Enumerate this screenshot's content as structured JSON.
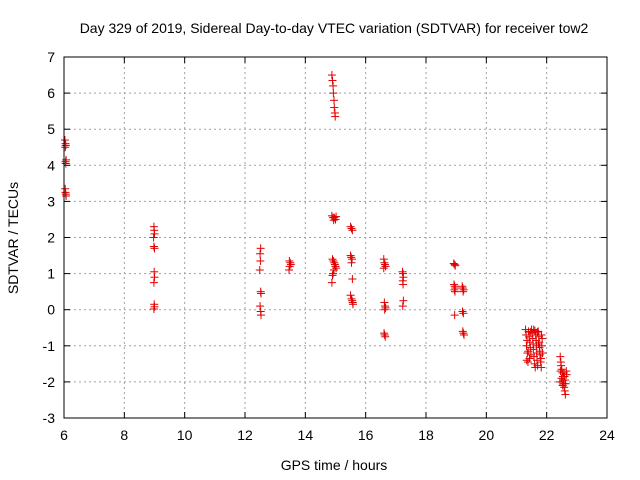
{
  "chart_data": {
    "type": "scatter",
    "title": "Day 329 of 2019, Sidereal Day-to-day VTEC variation (SDTVAR) for receiver tow2",
    "xlabel": "GPS time / hours",
    "ylabel": "SDTVAR / TECUs",
    "xlim": [
      6,
      24
    ],
    "ylim": [
      -3,
      7
    ],
    "xticks": [
      "6",
      "8",
      "10",
      "12",
      "14",
      "16",
      "18",
      "20",
      "22",
      "24"
    ],
    "yticks": [
      "-3",
      "-2",
      "-1",
      "0",
      "1",
      "2",
      "3",
      "4",
      "5",
      "6",
      "7"
    ],
    "grid": true,
    "marker": "+",
    "color": "#e00000",
    "series": [
      {
        "name": "SDTVAR",
        "points": [
          [
            6.03,
            4.7
          ],
          [
            6.05,
            4.6
          ],
          [
            6.06,
            4.55
          ],
          [
            6.04,
            4.5
          ],
          [
            6.07,
            4.15
          ],
          [
            6.05,
            4.1
          ],
          [
            6.06,
            4.05
          ],
          [
            6.04,
            3.35
          ],
          [
            6.05,
            3.25
          ],
          [
            6.06,
            3.2
          ],
          [
            6.07,
            3.15
          ],
          [
            8.98,
            2.3
          ],
          [
            8.99,
            2.2
          ],
          [
            9.0,
            2.1
          ],
          [
            8.97,
            2.0
          ],
          [
            8.98,
            1.75
          ],
          [
            9.0,
            1.7
          ],
          [
            8.99,
            1.05
          ],
          [
            9.0,
            0.9
          ],
          [
            8.98,
            0.75
          ],
          [
            8.99,
            0.15
          ],
          [
            9.0,
            0.08
          ],
          [
            8.98,
            0.02
          ],
          [
            12.52,
            1.7
          ],
          [
            12.5,
            1.55
          ],
          [
            12.51,
            1.35
          ],
          [
            12.49,
            1.1
          ],
          [
            12.52,
            0.5
          ],
          [
            12.53,
            0.45
          ],
          [
            12.5,
            0.1
          ],
          [
            12.52,
            -0.05
          ],
          [
            12.53,
            -0.15
          ],
          [
            13.47,
            1.35
          ],
          [
            13.5,
            1.3
          ],
          [
            13.52,
            1.25
          ],
          [
            13.48,
            1.2
          ],
          [
            13.46,
            1.1
          ],
          [
            14.88,
            6.5
          ],
          [
            14.9,
            6.35
          ],
          [
            14.92,
            6.2
          ],
          [
            14.93,
            6.0
          ],
          [
            14.95,
            5.8
          ],
          [
            14.96,
            5.6
          ],
          [
            14.98,
            5.45
          ],
          [
            14.99,
            5.35
          ],
          [
            14.88,
            2.6
          ],
          [
            14.92,
            2.55
          ],
          [
            14.96,
            2.55
          ],
          [
            15.0,
            2.5
          ],
          [
            15.02,
            2.58
          ],
          [
            14.94,
            2.48
          ],
          [
            14.9,
            1.4
          ],
          [
            14.93,
            1.35
          ],
          [
            14.96,
            1.3
          ],
          [
            14.98,
            1.25
          ],
          [
            15.0,
            1.2
          ],
          [
            15.02,
            1.15
          ],
          [
            14.95,
            1.1
          ],
          [
            14.92,
            1.0
          ],
          [
            14.9,
            0.95
          ],
          [
            14.88,
            0.75
          ],
          [
            15.5,
            2.3
          ],
          [
            15.53,
            2.25
          ],
          [
            15.56,
            2.2
          ],
          [
            15.5,
            1.5
          ],
          [
            15.52,
            1.45
          ],
          [
            15.55,
            1.4
          ],
          [
            15.53,
            1.3
          ],
          [
            15.56,
            0.85
          ],
          [
            15.5,
            0.4
          ],
          [
            15.53,
            0.3
          ],
          [
            15.55,
            0.25
          ],
          [
            15.57,
            0.2
          ],
          [
            15.58,
            0.15
          ],
          [
            16.6,
            1.4
          ],
          [
            16.62,
            1.3
          ],
          [
            16.64,
            1.25
          ],
          [
            16.66,
            1.2
          ],
          [
            16.6,
            1.15
          ],
          [
            16.62,
            0.2
          ],
          [
            16.64,
            0.1
          ],
          [
            16.66,
            0.05
          ],
          [
            16.63,
            0.0
          ],
          [
            16.61,
            -0.65
          ],
          [
            16.63,
            -0.7
          ],
          [
            16.65,
            -0.75
          ],
          [
            17.22,
            1.05
          ],
          [
            17.24,
            1.0
          ],
          [
            17.25,
            0.9
          ],
          [
            17.23,
            0.8
          ],
          [
            17.24,
            0.7
          ],
          [
            17.25,
            0.25
          ],
          [
            17.23,
            0.1
          ],
          [
            18.92,
            1.28
          ],
          [
            18.95,
            1.25
          ],
          [
            18.97,
            1.22
          ],
          [
            18.93,
            0.7
          ],
          [
            18.95,
            0.65
          ],
          [
            18.97,
            0.6
          ],
          [
            18.94,
            0.55
          ],
          [
            18.96,
            0.5
          ],
          [
            18.95,
            -0.15
          ],
          [
            19.2,
            0.65
          ],
          [
            19.22,
            0.6
          ],
          [
            19.25,
            0.55
          ],
          [
            19.23,
            0.5
          ],
          [
            19.21,
            -0.05
          ],
          [
            19.24,
            -0.1
          ],
          [
            19.22,
            -0.6
          ],
          [
            19.24,
            -0.65
          ],
          [
            19.26,
            -0.7
          ],
          [
            21.3,
            -0.55
          ],
          [
            21.32,
            -0.7
          ],
          [
            21.35,
            -0.85
          ],
          [
            21.33,
            -1.0
          ],
          [
            21.36,
            -1.2
          ],
          [
            21.34,
            -1.4
          ],
          [
            21.38,
            -1.45
          ],
          [
            21.4,
            -0.6
          ],
          [
            21.42,
            -0.75
          ],
          [
            21.44,
            -0.9
          ],
          [
            21.46,
            -1.05
          ],
          [
            21.48,
            -1.25
          ],
          [
            21.5,
            -0.55
          ],
          [
            21.52,
            -0.65
          ],
          [
            21.54,
            -0.8
          ],
          [
            21.55,
            -0.95
          ],
          [
            21.56,
            -1.1
          ],
          [
            21.58,
            -1.3
          ],
          [
            21.6,
            -1.5
          ],
          [
            21.62,
            -1.6
          ],
          [
            21.64,
            -0.7
          ],
          [
            21.65,
            -0.85
          ],
          [
            21.66,
            -1.0
          ],
          [
            21.67,
            -1.2
          ],
          [
            21.68,
            -1.4
          ],
          [
            21.7,
            -1.55
          ],
          [
            21.72,
            -0.6
          ],
          [
            21.74,
            -0.75
          ],
          [
            21.75,
            -0.9
          ],
          [
            21.76,
            -1.05
          ],
          [
            21.78,
            -1.25
          ],
          [
            21.8,
            -1.45
          ],
          [
            21.82,
            -1.6
          ],
          [
            21.84,
            -1.0
          ],
          [
            21.85,
            -0.8
          ],
          [
            21.86,
            -1.2
          ],
          [
            21.57,
            -0.55
          ],
          [
            21.61,
            -0.58
          ],
          [
            21.69,
            -0.62
          ],
          [
            21.73,
            -0.95
          ],
          [
            21.77,
            -1.15
          ],
          [
            21.81,
            -1.35
          ],
          [
            21.83,
            -0.7
          ],
          [
            21.47,
            -0.62
          ],
          [
            21.43,
            -1.35
          ],
          [
            21.39,
            -1.15
          ],
          [
            22.45,
            -1.3
          ],
          [
            22.47,
            -1.45
          ],
          [
            22.48,
            -1.55
          ],
          [
            22.5,
            -1.65
          ],
          [
            22.52,
            -1.75
          ],
          [
            22.54,
            -1.85
          ],
          [
            22.55,
            -1.95
          ],
          [
            22.56,
            -2.05
          ],
          [
            22.58,
            -2.15
          ],
          [
            22.6,
            -2.25
          ],
          [
            22.62,
            -2.35
          ],
          [
            22.46,
            -1.7
          ],
          [
            22.49,
            -1.9
          ],
          [
            22.51,
            -2.0
          ],
          [
            22.53,
            -2.1
          ],
          [
            22.57,
            -1.75
          ],
          [
            22.59,
            -1.85
          ],
          [
            22.61,
            -1.95
          ],
          [
            22.63,
            -2.05
          ],
          [
            22.65,
            -1.7
          ],
          [
            22.66,
            -1.8
          ],
          [
            22.44,
            -2.0
          ]
        ]
      }
    ]
  }
}
